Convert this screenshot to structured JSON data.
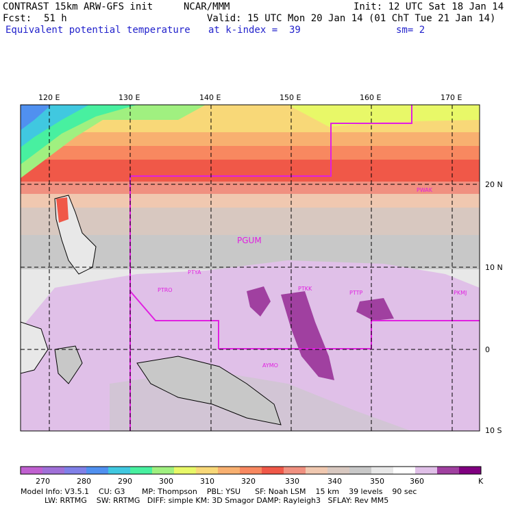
{
  "header": {
    "model_line": "CONTRAST 15km ARW-GFS init",
    "org": "NCAR/MMM",
    "init": "Init: 12 UTC Sat 18 Jan 14",
    "fcst_label": "Fcst:",
    "fcst_value": "51 h",
    "valid": "Valid: 15 UTC Mon 20 Jan 14 (01 ChT Tue 21 Jan 14)",
    "field": "Equivalent potential temperature",
    "level": "at k-index =  39",
    "smooth": "sm= 2"
  },
  "axes": {
    "lon_labels": [
      "120 E",
      "130 E",
      "140 E",
      "150 E",
      "160 E",
      "170 E"
    ],
    "lat_labels": [
      "20 N",
      "10 N",
      "0",
      "10 S"
    ]
  },
  "stations": [
    "PGUM",
    "PWAK",
    "PTYA",
    "PTRO",
    "PTKK",
    "PTTP",
    "PKMJ",
    "AYMO"
  ],
  "colorbar": {
    "labels": [
      "270",
      "280",
      "290",
      "300",
      "310",
      "320",
      "330",
      "340",
      "350",
      "360"
    ],
    "unit": "K",
    "colors": [
      "#c060d0",
      "#a070d8",
      "#8080e8",
      "#5090f0",
      "#40c8e0",
      "#48f0a0",
      "#a0f080",
      "#e8f868",
      "#f8d878",
      "#f8b070",
      "#f88860",
      "#f05848",
      "#f09080",
      "#f0c8b0",
      "#d8c8c0",
      "#c8c8c8",
      "#e8e8e8",
      "#ffffff",
      "#e0c0e8",
      "#a040a0",
      "#800080"
    ]
  },
  "footer": {
    "line1": "Model Info: V3.5.1    CU: G3       MP: Thompson    PBL: YSU      SF: Noah LSM    15 km    39 levels    90 sec",
    "line2": "          LW: RRTMG    SW: RRTMG   DIFF: simple KM: 3D Smagor DAMP: Rayleigh3   SFLAY: Rev MM5"
  }
}
